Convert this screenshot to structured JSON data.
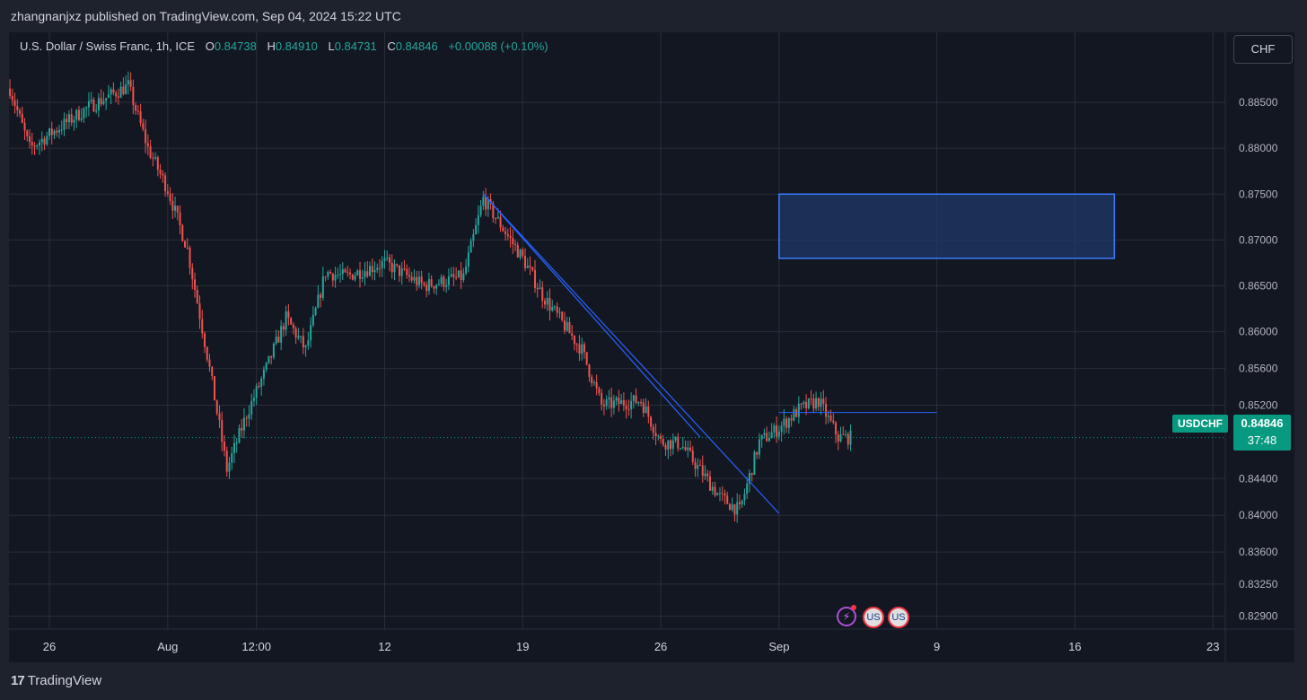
{
  "header": {
    "publisher_line": "zhangnanjxz published on TradingView.com, Sep 04, 2024 15:22 UTC"
  },
  "legend": {
    "symbol": "U.S. Dollar / Swiss Franc, 1h, ICE",
    "open_label": "O",
    "open": "0.84738",
    "high_label": "H",
    "high": "0.84910",
    "low_label": "L",
    "low": "0.84731",
    "close_label": "C",
    "close": "0.84846",
    "change": "+0.00088 (+0.10%)"
  },
  "currency_button": "CHF",
  "price_tag": {
    "symbol": "USDCHF",
    "price": "0.84846",
    "countdown": "37:48"
  },
  "footer": {
    "brand_logo": "17",
    "brand": "TradingView"
  },
  "events": {
    "bolt_icon": "⚡",
    "flag_icon": "US"
  },
  "colors": {
    "up": "#26a69a",
    "down": "#ef5350",
    "drawing": "#2962ff",
    "box_fill": "#1e3a6a",
    "last_price": "#089981",
    "grid": "#2a2e39",
    "background": "#131722"
  },
  "chart_data": {
    "type": "candlestick",
    "instrument": "USDCHF",
    "timeframe": "1h",
    "x_axis_labels": [
      {
        "label": "26",
        "date": "2024-07-26"
      },
      {
        "label": "Aug",
        "date": "2024-08-01"
      },
      {
        "label": "12:00",
        "date": "2024-08-05 12:00"
      },
      {
        "label": "12",
        "date": "2024-08-12"
      },
      {
        "label": "19",
        "date": "2024-08-19"
      },
      {
        "label": "26",
        "date": "2024-08-26"
      },
      {
        "label": "Sep",
        "date": "2024-09-01"
      },
      {
        "label": "9",
        "date": "2024-09-09"
      },
      {
        "label": "16",
        "date": "2024-09-16"
      },
      {
        "label": "23",
        "date": "2024-09-23"
      }
    ],
    "y_axis_labels": [
      "0.88500",
      "0.88000",
      "0.87500",
      "0.87000",
      "0.86500",
      "0.86000",
      "0.85600",
      "0.85200",
      "0.84400",
      "0.84000",
      "0.83600",
      "0.83250",
      "0.82900"
    ],
    "y_range": [
      0.8276,
      0.8895
    ],
    "price_path": [
      [
        "2024-07-24",
        0.8865
      ],
      [
        "2024-07-25",
        0.88
      ],
      [
        "2024-07-26",
        0.8815
      ],
      [
        "2024-07-28",
        0.8845
      ],
      [
        "2024-07-30",
        0.8868
      ],
      [
        "2024-07-31",
        0.88
      ],
      [
        "2024-08-01",
        0.8755
      ],
      [
        "2024-08-02",
        0.869
      ],
      [
        "2024-08-03",
        0.8575
      ],
      [
        "2024-08-04",
        0.845
      ],
      [
        "2024-08-05",
        0.851
      ],
      [
        "2024-08-06",
        0.856
      ],
      [
        "2024-08-07",
        0.8615
      ],
      [
        "2024-08-08",
        0.858
      ],
      [
        "2024-08-09",
        0.8665
      ],
      [
        "2024-08-10",
        0.866
      ],
      [
        "2024-08-12",
        0.8675
      ],
      [
        "2024-08-14",
        0.865
      ],
      [
        "2024-08-16",
        0.866
      ],
      [
        "2024-08-17",
        0.8745
      ],
      [
        "2024-08-19",
        0.868
      ],
      [
        "2024-08-20",
        0.864
      ],
      [
        "2024-08-22",
        0.858
      ],
      [
        "2024-08-23",
        0.852
      ],
      [
        "2024-08-25",
        0.8525
      ],
      [
        "2024-08-26",
        0.848
      ],
      [
        "2024-08-27",
        0.8478
      ],
      [
        "2024-08-29",
        0.842
      ],
      [
        "2024-08-30",
        0.8405
      ],
      [
        "2024-08-31",
        0.848
      ],
      [
        "2024-09-01",
        0.8495
      ],
      [
        "2024-09-02",
        0.8515
      ],
      [
        "2024-09-03",
        0.8525
      ],
      [
        "2024-09-04",
        0.8485
      ]
    ],
    "drawings": {
      "trendline_1": {
        "from": [
          "2024-08-17",
          0.875
        ],
        "to": [
          "2024-09-01",
          0.8402
        ]
      },
      "trendline_2": {
        "from": [
          "2024-08-17",
          0.875
        ],
        "to": [
          "2024-08-28",
          0.8485
        ]
      },
      "resistance_box": {
        "x_from": "2024-09-01",
        "x_to": "2024-09-18",
        "top": 0.875,
        "bottom": 0.868
      },
      "horizontal_line": {
        "x_from": "2024-09-01",
        "x_to": "2024-09-09",
        "price": 0.8512
      }
    },
    "last_price": 0.84846,
    "grid": true
  }
}
